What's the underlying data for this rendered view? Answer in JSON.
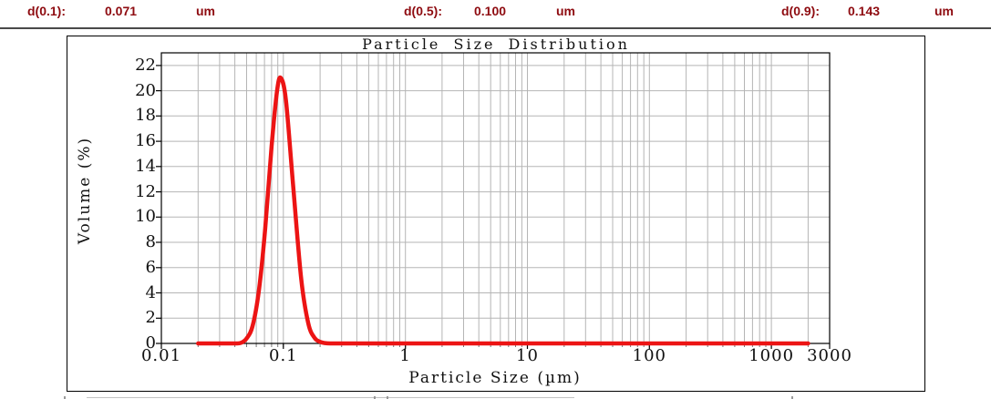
{
  "header": {
    "text_color": "#8e0b10",
    "divider_color": "#4a4a4a",
    "stats": [
      {
        "label": "d(0.1):",
        "value": "0.071",
        "unit": "um"
      },
      {
        "label": "d(0.5):",
        "value": "0.100",
        "unit": "um"
      },
      {
        "label": "d(0.9):",
        "value": "0.143",
        "unit": "um"
      }
    ]
  },
  "chart_data": {
    "type": "line",
    "title": "Particle Size Distribution",
    "xlabel": "Particle Size (µm)",
    "ylabel": "Volume (%)",
    "x_scale": "log",
    "xlim": [
      0.01,
      3000
    ],
    "ylim": [
      0,
      23
    ],
    "grid": true,
    "legend": "none",
    "line_color": "#ec1414",
    "grid_color": "#b5b5b5",
    "x_ticks": {
      "values": [
        0.01,
        0.1,
        1,
        10,
        100,
        1000,
        3000
      ],
      "labels": [
        "0.01",
        "0.1",
        "1",
        "10",
        "100",
        "1000",
        "3000"
      ]
    },
    "y_ticks": {
      "values": [
        0,
        2,
        4,
        6,
        8,
        10,
        12,
        14,
        16,
        18,
        20,
        22
      ],
      "labels": [
        "0",
        "2",
        "4",
        "6",
        "8",
        "10",
        "12",
        "14",
        "16",
        "18",
        "20",
        "22"
      ]
    },
    "series": [
      {
        "name": "Volume (%)",
        "points": [
          [
            0.02,
            0
          ],
          [
            0.03,
            0
          ],
          [
            0.04,
            0
          ],
          [
            0.045,
            0.05
          ],
          [
            0.05,
            0.4
          ],
          [
            0.056,
            1.4
          ],
          [
            0.063,
            4.2
          ],
          [
            0.071,
            9.1
          ],
          [
            0.08,
            15.6
          ],
          [
            0.089,
            20.1
          ],
          [
            0.0955,
            21.0
          ],
          [
            0.105,
            19.2
          ],
          [
            0.12,
            12.6
          ],
          [
            0.14,
            5.1
          ],
          [
            0.16,
            1.6
          ],
          [
            0.18,
            0.45
          ],
          [
            0.2,
            0.12
          ],
          [
            0.22,
            0.03
          ],
          [
            0.25,
            0
          ],
          [
            0.3,
            0
          ],
          [
            0.5,
            0
          ],
          [
            1,
            0
          ],
          [
            2,
            0
          ],
          [
            5,
            0
          ],
          [
            10,
            0
          ],
          [
            20,
            0
          ],
          [
            50,
            0
          ],
          [
            100,
            0
          ],
          [
            200,
            0
          ],
          [
            500,
            0
          ],
          [
            1000,
            0
          ],
          [
            2000,
            0
          ]
        ]
      }
    ]
  }
}
